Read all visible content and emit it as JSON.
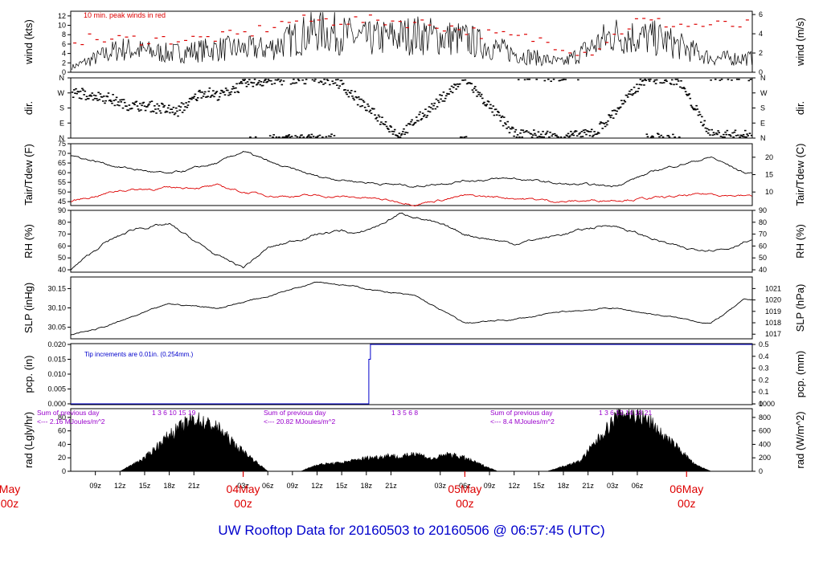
{
  "footer": {
    "title": "UW Rooftop Data for 20160503  to  20160506 @ 06:57:45  (UTC)"
  },
  "colors": {
    "peak": "#dd0000",
    "dew": "#dd0000",
    "precip": "#0000cc",
    "note": "#9900cc",
    "footer": "#0000cc",
    "day": "#dd0000",
    "trace": "#000000"
  },
  "x_axis": {
    "hour_ticks": [
      "09z",
      "12z",
      "15z",
      "18z",
      "21z",
      "03z",
      "06z",
      "09z",
      "12z",
      "15z",
      "18z",
      "21z",
      "03z",
      "06z",
      "09z",
      "12z",
      "15z",
      "18z",
      "21z",
      "03z",
      "06z"
    ],
    "day_labels": [
      {
        "id": "d03",
        "line1": "May",
        "line2": "00z"
      },
      {
        "id": "d04",
        "line1": "04May",
        "line2": "00z"
      },
      {
        "id": "d05",
        "line1": "05May",
        "line2": "00z"
      },
      {
        "id": "d06",
        "line1": "06May",
        "line2": "00z"
      }
    ]
  },
  "chart_data": [
    {
      "id": "wind",
      "type": "line",
      "ylabel_left": "wind (kts)",
      "ylabel_right": "wind (m/s)",
      "left_ticks": [
        "0",
        "2",
        "4",
        "6",
        "8",
        "10",
        "12"
      ],
      "ylim": [
        0,
        13
      ],
      "right_ticks": [
        "0",
        "2",
        "4",
        "6"
      ],
      "annotation": "10 min. peak winds in red",
      "series": [
        {
          "x": [
            0,
            6,
            12,
            18,
            24,
            30,
            36,
            42,
            48,
            54,
            60,
            66,
            72,
            78
          ],
          "values": [
            1,
            5,
            4,
            5,
            5,
            9,
            7,
            8,
            7,
            4,
            2,
            8,
            7,
            3
          ]
        },
        {
          "x": [
            3,
            9,
            15,
            21,
            27,
            33,
            39,
            45,
            51,
            57,
            63,
            69,
            75
          ],
          "values": [
            7,
            7,
            7,
            8,
            11,
            11,
            11,
            10,
            8,
            7,
            4,
            11,
            10
          ]
        }
      ]
    },
    {
      "id": "dir",
      "type": "scatter",
      "ylabel": "dir.",
      "left_ticks": [
        "N",
        "E",
        "S",
        "W",
        "N"
      ],
      "right_ticks": [
        "N",
        "E",
        "S",
        "W",
        "N"
      ],
      "series": [
        {
          "x": [
            1,
            4,
            7,
            10,
            13,
            16,
            18,
            22,
            26,
            32,
            40,
            48,
            54,
            60,
            64,
            70,
            74,
            78
          ],
          "values": [
            270,
            250,
            200,
            190,
            160,
            280,
            260,
            340,
            355,
            360,
            20,
            360,
            30,
            10,
            40,
            360,
            350,
            20
          ]
        }
      ]
    },
    {
      "id": "temp",
      "type": "line",
      "ylabel_left": "Tair/Tdew (F)",
      "ylabel_right": "Tair/Tdew (C)",
      "left_ticks": [
        "45",
        "50",
        "55",
        "60",
        "65",
        "70",
        "75"
      ],
      "ylim": [
        43,
        75
      ],
      "right_ticks": [
        "10",
        "15",
        "20"
      ],
      "series": [
        {
          "x": [
            0,
            6,
            12,
            18,
            21,
            25,
            30,
            36,
            42,
            48,
            54,
            60,
            66,
            72,
            78,
            82
          ],
          "values": [
            69,
            63,
            59,
            65,
            71,
            64,
            58,
            55,
            53,
            56,
            57,
            54,
            53,
            62,
            68,
            60
          ]
        },
        {
          "x": [
            0,
            6,
            12,
            18,
            21,
            25,
            30,
            36,
            42,
            48,
            54,
            60,
            66,
            72,
            78,
            82
          ],
          "values": [
            45,
            51,
            52,
            53,
            50,
            48,
            48,
            47,
            44,
            48,
            47,
            45,
            46,
            47,
            49,
            48
          ]
        }
      ]
    },
    {
      "id": "rh",
      "type": "line",
      "ylabel_left": "RH (%)",
      "ylabel_right": "RH (%)",
      "left_ticks": [
        "40",
        "50",
        "60",
        "70",
        "80",
        "90"
      ],
      "ylim": [
        38,
        90
      ],
      "right_ticks": [
        "40",
        "50",
        "60",
        "70",
        "80",
        "90"
      ],
      "series": [
        {
          "x": [
            0,
            4,
            8,
            12,
            18,
            21,
            24,
            30,
            33,
            35,
            38,
            40,
            42,
            48,
            54,
            60,
            64,
            66,
            70,
            75,
            80,
            82
          ],
          "values": [
            40,
            62,
            75,
            78,
            51,
            42,
            58,
            70,
            73,
            70,
            79,
            87,
            85,
            70,
            62,
            70,
            76,
            78,
            68,
            57,
            58,
            64
          ]
        }
      ]
    },
    {
      "id": "slp",
      "type": "line",
      "ylabel_left": "SLP (inHg)",
      "ylabel_right": "SLP (hPa)",
      "left_ticks": [
        "30.05",
        "30.10",
        "30.15"
      ],
      "ylim": [
        30.02,
        30.18
      ],
      "right_ticks": [
        "1017",
        "1018",
        "1019",
        "1020",
        "1021"
      ],
      "series": [
        {
          "x": [
            0,
            4,
            8,
            12,
            18,
            24,
            30,
            36,
            42,
            48,
            54,
            60,
            66,
            72,
            78,
            82
          ],
          "values": [
            30.03,
            30.05,
            30.08,
            30.11,
            30.1,
            30.13,
            30.17,
            30.15,
            30.13,
            30.06,
            30.07,
            30.09,
            30.1,
            30.08,
            30.06,
            30.12
          ]
        }
      ]
    },
    {
      "id": "pcp",
      "type": "line",
      "ylabel_left": "pcp. (in)",
      "ylabel_right": "pcp. (mm)",
      "left_ticks": [
        "0.000",
        "0.005",
        "0.010",
        "0.015",
        "0.020"
      ],
      "ylim": [
        0,
        0.02
      ],
      "right_ticks": [
        "0",
        "0.1",
        "0.2",
        "0.3",
        "0.4",
        "0.5"
      ],
      "annotation": "Tip increments are 0.01in. (0.254mm.)",
      "series": [
        {
          "x": [
            0,
            36,
            36.3,
            36.5,
            83
          ],
          "values": [
            0,
            0,
            0.015,
            0.02,
            0.02
          ]
        }
      ]
    },
    {
      "id": "rad",
      "type": "area",
      "ylabel_left": "rad (Lgly/hr)",
      "ylabel_right": "rad (W/m^2)",
      "left_ticks": [
        "0",
        "20",
        "40",
        "60",
        "80"
      ],
      "ylim": [
        0,
        93
      ],
      "right_ticks": [
        "0",
        "200",
        "400",
        "600",
        "800",
        "1000"
      ],
      "day_notes": [
        {
          "line1": "Sum of previous day",
          "line2": "<--- 2.16 MJoules/m^2",
          "hours": "1   3   6   10   15   19"
        },
        {
          "line1": "Sum of previous day",
          "line2": "<--- 20.82 MJoules/m^2",
          "hours": "1   3   5   6   8"
        },
        {
          "line1": "Sum of previous day",
          "line2": "<--- 8.4 MJoules/m^2",
          "hours": "1   3   6   10   14   18   21"
        }
      ],
      "series": [
        {
          "x": [
            6,
            9,
            12,
            15,
            18,
            20,
            24,
            28,
            30,
            33,
            36,
            38,
            39,
            40,
            42,
            44,
            46,
            48,
            50,
            52,
            58,
            62,
            64,
            67,
            70,
            71,
            72,
            74,
            76,
            78
          ],
          "values": [
            0,
            20,
            55,
            80,
            65,
            40,
            0,
            0,
            10,
            13,
            20,
            22,
            25,
            20,
            28,
            18,
            26,
            20,
            10,
            0,
            0,
            15,
            45,
            90,
            80,
            70,
            55,
            35,
            10,
            0
          ]
        }
      ]
    }
  ]
}
